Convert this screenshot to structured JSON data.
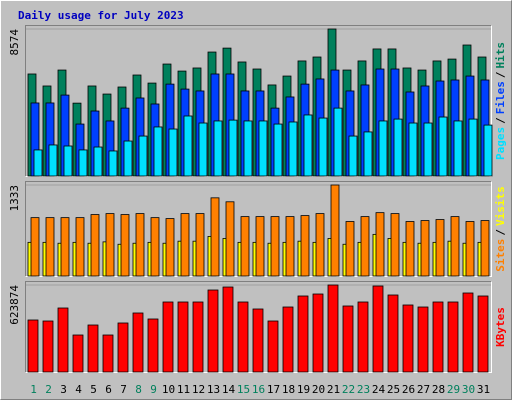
{
  "chart_data": [
    {
      "type": "bar",
      "title": "Daily usage for July 2023",
      "legend_separator": "/",
      "ylim": [
        0,
        8574
      ],
      "yticks": [
        8574
      ],
      "series": [
        {
          "name": "Pages",
          "color": "#00e0ff",
          "values": [
            1520,
            1810,
            1750,
            1520,
            1690,
            1460,
            2040,
            2330,
            2860,
            2740,
            3500,
            3090,
            3210,
            3260,
            3210,
            3210,
            3030,
            3150,
            3560,
            3380,
            3960,
            2330,
            2570,
            3210,
            3320,
            3090,
            3090,
            3440,
            3210,
            3320,
            2970
          ]
        },
        {
          "name": "Files",
          "color": "#0040ff",
          "values": [
            4260,
            4260,
            4720,
            3030,
            3790,
            3210,
            3960,
            4550,
            4200,
            5360,
            5070,
            4960,
            5950,
            5950,
            4960,
            4960,
            3960,
            4610,
            5360,
            5660,
            6180,
            4960,
            5310,
            6240,
            6240,
            4900,
            5250,
            5540,
            5600,
            5830,
            5600
          ]
        },
        {
          "name": "Hits",
          "color": "#00805c",
          "values": [
            5950,
            5250,
            6180,
            4250,
            5250,
            4780,
            5190,
            5890,
            5420,
            6530,
            6120,
            6300,
            7230,
            7460,
            6650,
            6240,
            5310,
            5830,
            6710,
            6940,
            8574,
            6180,
            6710,
            7410,
            7410,
            6300,
            6180,
            6710,
            6820,
            7640,
            6940
          ]
        }
      ]
    },
    {
      "type": "bar",
      "legend_separator": "/",
      "ylim": [
        0,
        1333
      ],
      "yticks": [
        1333
      ],
      "series": [
        {
          "name": "Sites",
          "color": "#ff8000",
          "values": [
            855,
            855,
            855,
            855,
            900,
            914,
            900,
            914,
            855,
            841,
            914,
            914,
            1145,
            1087,
            870,
            870,
            870,
            870,
            885,
            914,
            1333,
            798,
            870,
            928,
            914,
            798,
            812,
            827,
            870,
            798,
            812
          ]
        },
        {
          "name": "Visits",
          "color": "#ffff00",
          "values": [
            493,
            493,
            480,
            493,
            480,
            500,
            465,
            480,
            493,
            480,
            510,
            510,
            580,
            550,
            493,
            493,
            480,
            493,
            510,
            493,
            550,
            465,
            493,
            610,
            550,
            493,
            480,
            493,
            510,
            480,
            493
          ]
        }
      ]
    },
    {
      "type": "bar",
      "ylim": [
        0,
        623874
      ],
      "yticks": [
        623874
      ],
      "categories": [
        "1",
        "2",
        "3",
        "4",
        "5",
        "6",
        "7",
        "8",
        "9",
        "10",
        "11",
        "12",
        "13",
        "14",
        "15",
        "16",
        "17",
        "18",
        "19",
        "20",
        "21",
        "22",
        "23",
        "24",
        "25",
        "26",
        "27",
        "28",
        "29",
        "30",
        "31"
      ],
      "category_colors": [
        "#00805c",
        "#00805c",
        "#000000",
        "#000000",
        "#000000",
        "#000000",
        "#000000",
        "#00805c",
        "#00805c",
        "#000000",
        "#000000",
        "#000000",
        "#000000",
        "#000000",
        "#00805c",
        "#00805c",
        "#000000",
        "#000000",
        "#000000",
        "#000000",
        "#000000",
        "#00805c",
        "#00805c",
        "#000000",
        "#000000",
        "#000000",
        "#000000",
        "#000000",
        "#00805c",
        "#00805c",
        "#000000"
      ],
      "series": [
        {
          "name": "KBytes",
          "color": "#ff0000",
          "values": [
            372900,
            365700,
            458900,
            265300,
            337000,
            265300,
            351400,
            423100,
            380100,
            502000,
            502000,
            502000,
            588000,
            609500,
            502000,
            451800,
            365700,
            466100,
            545000,
            559300,
            623874,
            473300,
            502000,
            616700,
            552200,
            480500,
            466100,
            502000,
            502000,
            566500,
            545000
          ]
        }
      ]
    }
  ]
}
